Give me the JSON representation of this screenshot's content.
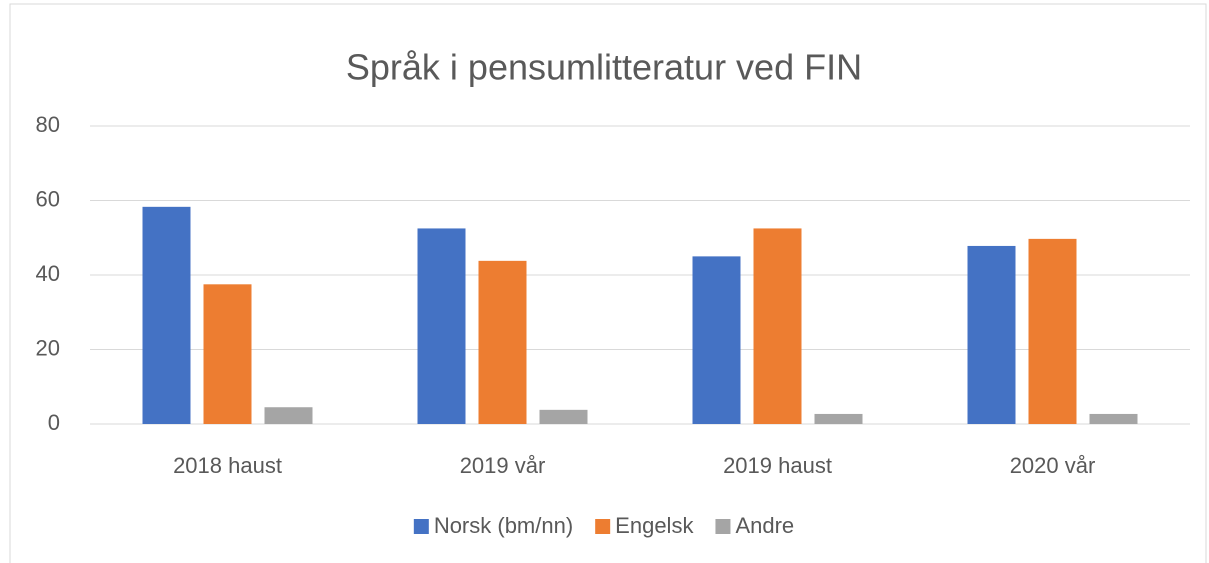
{
  "chart_data": {
    "type": "bar",
    "title": "Språk i pensumlitteratur ved FIN",
    "categories": [
      "2018 haust",
      "2019 vår",
      "2019 haust",
      "2020 vår"
    ],
    "series": [
      {
        "name": "Norsk (bm/nn)",
        "color": "#4472c4",
        "values": [
          58.3,
          52.5,
          45,
          47.8
        ]
      },
      {
        "name": "Engelsk",
        "color": "#ed7d31",
        "values": [
          37.5,
          43.8,
          52.5,
          49.7
        ]
      },
      {
        "name": "Andre",
        "color": "#a5a5a5",
        "values": [
          4.5,
          3.8,
          2.7,
          2.7
        ]
      }
    ],
    "ylim": [
      0,
      80
    ],
    "yticks": [
      0,
      20,
      40,
      60,
      80
    ],
    "grid": true,
    "legend": "bottom"
  }
}
